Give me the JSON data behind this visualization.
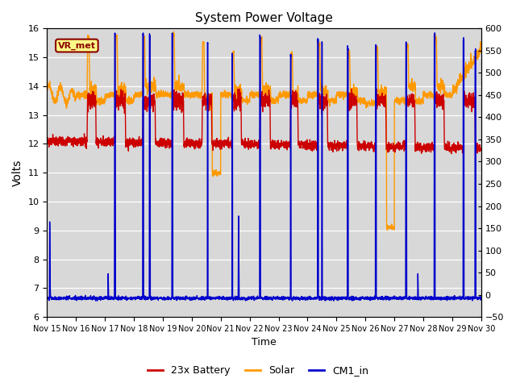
{
  "title": "System Power Voltage",
  "xlabel": "Time",
  "ylabel_left": "Volts",
  "ylim_left": [
    6.0,
    16.0
  ],
  "ylim_right": [
    -50,
    600
  ],
  "yticks_left": [
    6.0,
    7.0,
    8.0,
    9.0,
    10.0,
    11.0,
    12.0,
    13.0,
    14.0,
    15.0,
    16.0
  ],
  "yticks_right": [
    -50,
    0,
    50,
    100,
    150,
    200,
    250,
    300,
    350,
    400,
    450,
    500,
    550,
    600
  ],
  "xtick_labels": [
    "Nov 15",
    "Nov 16",
    "Nov 17",
    "Nov 18",
    "Nov 19",
    "Nov 20",
    "Nov 21",
    "Nov 22",
    "Nov 23",
    "Nov 24",
    "Nov 25",
    "Nov 26",
    "Nov 27",
    "Nov 28",
    "Nov 29",
    "Nov 30"
  ],
  "color_battery": "#cc0000",
  "color_solar": "#ff9900",
  "color_cm1": "#0000cc",
  "bg_color": "#d8d8d8",
  "vr_met_label": "VR_met",
  "legend_labels": [
    "23x Battery",
    "Solar",
    "CM1_in"
  ],
  "linewidth": 1.0
}
